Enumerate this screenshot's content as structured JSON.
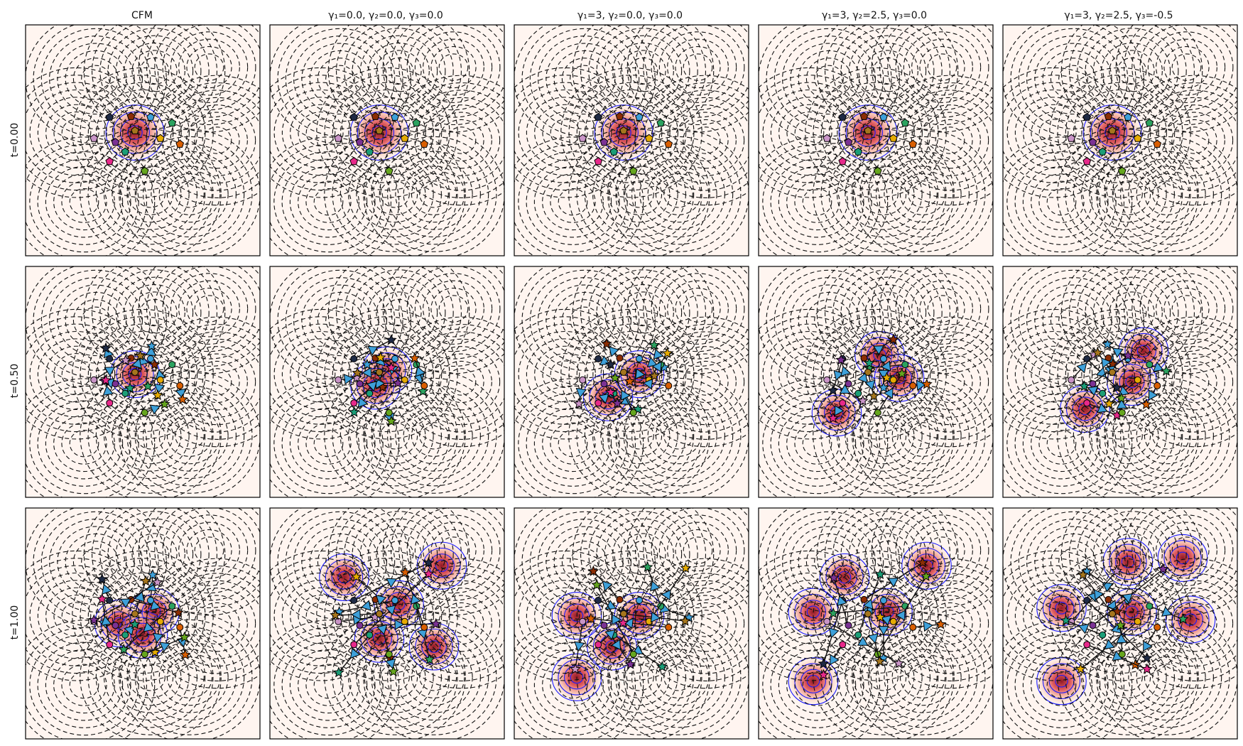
{
  "figure": {
    "column_titles": [
      "CFM",
      "γ₁=0.0, γ₂=0.0, γ₃=0.0",
      "γ₁=3, γ₂=0.0, γ₃=0.0",
      "γ₁=3, γ₂=2.5, γ₃=0.0",
      "γ₁=3, γ₂=2.5, γ₃=-0.5"
    ],
    "row_labels": [
      "t=0.00",
      "t=0.50",
      "t=1.00"
    ]
  },
  "colors": {
    "background": "#fff5f0",
    "density_cmap": "Reds",
    "density_line": "#1a1aff",
    "potential_contour": "#111111",
    "trajectory_marker": "#3ea0d9"
  },
  "chart_data": {
    "type": "contour",
    "grid": false,
    "axes_ticks": false,
    "target_modes": [
      [
        -1.2,
        1.6
      ],
      [
        0.3,
        1.8
      ],
      [
        1.7,
        1.9
      ],
      [
        -1.7,
        0.2
      ],
      [
        0.0,
        0.2
      ],
      [
        1.9,
        0.0
      ],
      [
        -1.5,
        -1.6
      ],
      [
        0.2,
        -1.4
      ],
      [
        1.2,
        -1.4
      ]
    ],
    "source_center": [
      -0.2,
      0.2
    ],
    "source_points": [
      [
        -0.85,
        0.6
      ],
      [
        -0.3,
        0.62
      ],
      [
        0.2,
        0.6
      ],
      [
        0.75,
        0.45
      ],
      [
        -1.25,
        0.05
      ],
      [
        0.45,
        0.05
      ],
      [
        -0.7,
        -0.05
      ],
      [
        0.95,
        -0.1
      ],
      [
        -0.45,
        -0.3
      ],
      [
        -0.85,
        -0.55
      ],
      [
        0.05,
        -0.8
      ],
      [
        -0.2,
        0.25
      ]
    ],
    "density_centers": {
      "t=0.00": [
        [
          [
            -0.2,
            0.2
          ]
        ],
        [
          [
            -0.2,
            0.2
          ]
        ],
        [
          [
            -0.2,
            0.2
          ]
        ],
        [
          [
            -0.2,
            0.2
          ]
        ],
        [
          [
            -0.2,
            0.2
          ]
        ]
      ],
      "t=0.50": [
        [
          [
            -0.2,
            0.2
          ]
        ],
        [
          [
            0.0,
            0.3
          ],
          [
            -0.3,
            -0.1
          ]
        ],
        [
          [
            -0.6,
            -0.4
          ],
          [
            0.2,
            0.2
          ]
        ],
        [
          [
            -1.0,
            -0.8
          ],
          [
            0.1,
            0.7
          ],
          [
            0.6,
            0.1
          ]
        ],
        [
          [
            0.6,
            0.8
          ],
          [
            -0.9,
            -0.7
          ],
          [
            0.3,
            0.0
          ]
        ]
      ],
      "t=1.00": [
        [
          [
            0.3,
            0.3
          ],
          [
            -0.6,
            0.0
          ],
          [
            0.0,
            -0.3
          ]
        ],
        [
          [
            0.3,
            0.5
          ],
          [
            -1.1,
            1.2
          ],
          [
            1.4,
            1.5
          ],
          [
            -0.2,
            -0.4
          ],
          [
            1.2,
            -0.6
          ]
        ],
        [
          [
            -1.4,
            -1.4
          ],
          [
            -0.5,
            -0.6
          ],
          [
            -1.4,
            0.2
          ],
          [
            0.2,
            0.2
          ]
        ],
        [
          [
            -1.6,
            -1.5
          ],
          [
            -1.6,
            0.3
          ],
          [
            -0.8,
            1.2
          ],
          [
            1.3,
            1.5
          ],
          [
            0.3,
            0.3
          ]
        ],
        [
          [
            -1.5,
            -1.5
          ],
          [
            1.6,
            1.7
          ],
          [
            -1.5,
            0.4
          ],
          [
            0.2,
            1.6
          ],
          [
            1.8,
            0.1
          ],
          [
            0.3,
            0.3
          ]
        ]
      ]
    }
  }
}
